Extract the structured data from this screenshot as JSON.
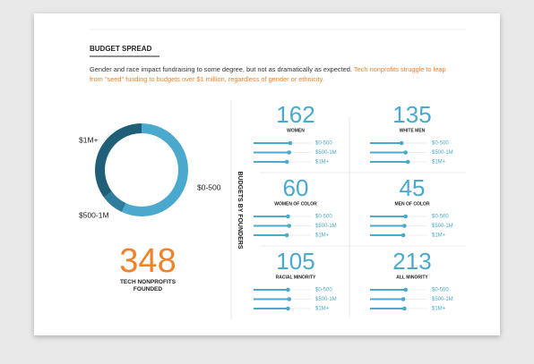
{
  "header": {
    "title": "BUDGET SPREAD",
    "intro": "Gender and race impact fundraising to some degree, but not as dramatically as expected. ",
    "highlight": "Tech nonprofits struggle to leap from \"seed\" funding to budgets over $1 million, regardless of gender or ethnicity."
  },
  "donut": {
    "type": "pie",
    "categories": [
      "$0-500",
      "$500-1M",
      "$1M+"
    ],
    "values": [
      57,
      8,
      35
    ],
    "colors": [
      "#4aa9cc",
      "#2e7d9c",
      "#1f5f77"
    ]
  },
  "total": {
    "value": 348,
    "label": "TECH NONPROFITS FOUNDED"
  },
  "side_label": "BUDGETS BY FOUNDERS",
  "xlim": [
    0,
    100
  ],
  "panels": [
    {
      "count": 162,
      "label": "WOMEN",
      "categories": [
        "$0-500",
        "$500-1M",
        "$1M+"
      ],
      "values": [
        64,
        62,
        58
      ]
    },
    {
      "count": 135,
      "label": "WHITE MEN",
      "categories": [
        "$0-500",
        "$500-1M",
        "$1M+"
      ],
      "values": [
        55,
        62,
        66
      ]
    },
    {
      "count": 60,
      "label": "WOMEN OF COLOR",
      "categories": [
        "$0-500",
        "$500-1M",
        "$1M+"
      ],
      "values": [
        60,
        62,
        58
      ]
    },
    {
      "count": 45,
      "label": "MEN OF COLOR",
      "categories": [
        "$0-500",
        "$500-1M",
        "$1M+"
      ],
      "values": [
        62,
        60,
        58
      ]
    },
    {
      "count": 105,
      "label": "RACIAL MINORITY",
      "categories": [
        "$0-500",
        "$500-1M",
        "$1M+"
      ],
      "values": [
        60,
        62,
        60
      ]
    },
    {
      "count": 213,
      "label": "ALL MINORITY",
      "categories": [
        "$0-500",
        "$500-1M",
        "$1M+"
      ],
      "values": [
        62,
        58,
        60
      ]
    }
  ]
}
